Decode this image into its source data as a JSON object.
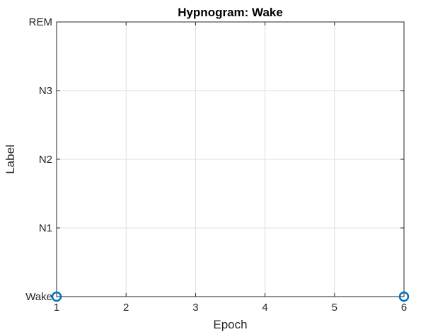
{
  "chart_data": {
    "type": "scatter",
    "title": "Hypnogram: Wake",
    "xlabel": "Epoch",
    "ylabel": "Label",
    "xlim": [
      1,
      6
    ],
    "x_ticks": [
      1,
      2,
      3,
      4,
      5,
      6
    ],
    "y_categories": [
      "Wake",
      "N1",
      "N2",
      "N3",
      "REM"
    ],
    "grid": true,
    "series": [
      {
        "points": [
          {
            "x": 1,
            "y": "Wake"
          },
          {
            "x": 6,
            "y": "Wake"
          }
        ],
        "color": "#0072BD",
        "marker": "circle"
      }
    ]
  }
}
